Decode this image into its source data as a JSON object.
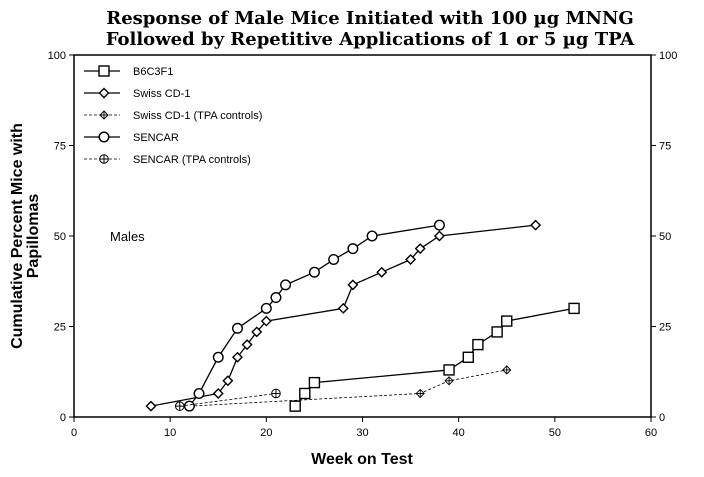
{
  "chart_data": {
    "type": "line",
    "title_lines": [
      "Response of Male Mice Initiated with 100 µg MNNG",
      "Followed by Repetitive Applications of 1 or 5 µg TPA"
    ],
    "xlabel": "Week on Test",
    "ylabel_lines": [
      "Cumulative Percent Mice with",
      "Papillomas"
    ],
    "xlim": [
      0,
      60
    ],
    "ylim": [
      0,
      100
    ],
    "x_ticks": [
      0,
      10,
      20,
      30,
      40,
      50,
      60
    ],
    "y_ticks": [
      0,
      25,
      50,
      75,
      100
    ],
    "right_axis_ticks": [
      0,
      25,
      50,
      75,
      100
    ],
    "grid": false,
    "legend_position": "top-left",
    "annotation": "Males",
    "series": [
      {
        "name": "B6C3F1",
        "marker": "square",
        "line_style": "solid",
        "x": [
          23,
          24,
          25,
          39,
          41,
          42,
          44,
          45,
          52
        ],
        "y": [
          3,
          6.5,
          9.5,
          13,
          16.5,
          20,
          23.5,
          26.5,
          30
        ]
      },
      {
        "name": "Swiss CD-1",
        "marker": "diamond",
        "line_style": "solid",
        "x": [
          8,
          15,
          16,
          17,
          18,
          19,
          20,
          28,
          29,
          32,
          35,
          36,
          38,
          48
        ],
        "y": [
          3,
          6.5,
          10,
          16.5,
          20,
          23.5,
          26.5,
          30,
          36.5,
          40,
          43.5,
          46.5,
          50,
          53
        ]
      },
      {
        "name": "Swiss CD-1 (TPA controls)",
        "marker": "small-diamond-cross",
        "line_style": "dashed",
        "x": [
          12,
          36,
          39,
          45
        ],
        "y": [
          3,
          6.5,
          10,
          13
        ]
      },
      {
        "name": "SENCAR",
        "marker": "circle",
        "line_style": "solid",
        "x": [
          12,
          13,
          15,
          17,
          20,
          21,
          22,
          25,
          27,
          29,
          31,
          38
        ],
        "y": [
          3,
          6.5,
          16.5,
          24.5,
          30,
          33,
          36.5,
          40,
          43.5,
          46.5,
          50,
          53
        ]
      },
      {
        "name": "SENCAR (TPA controls)",
        "marker": "circle-cross",
        "line_style": "dashed",
        "x": [
          11,
          21
        ],
        "y": [
          3,
          6.5
        ]
      }
    ]
  }
}
